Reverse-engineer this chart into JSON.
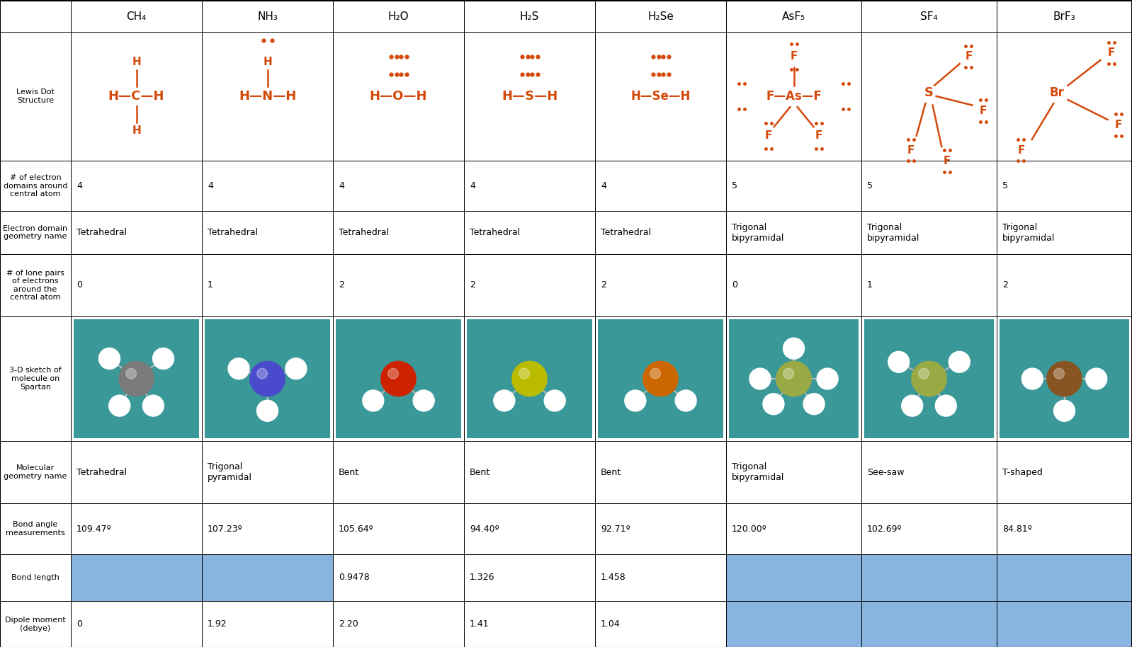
{
  "orange": "#d4490a",
  "blue_bg": "#8ab4e0",
  "teal_bg": "#3a9898",
  "white": "#ffffff",
  "black": "#000000",
  "header_texts": [
    "CH₄",
    "NH₃",
    "H₂O",
    "H₂S",
    "H₂Se",
    "AsF₅",
    "SF₄",
    "BrF₃"
  ],
  "row_labels": [
    "Lewis Dot\nStructure",
    "# of electron\ndomains around\ncentral atom",
    "Electron domain\ngeometry name",
    "# of lone pairs\nof electrons\naround the\ncentral atom",
    "3-D sketch of\nmolecule on\nSpartan",
    "Molecular\ngeometry name",
    "Bond angle\nmeasurements",
    "Bond length",
    "Dipole moment\n(debye)"
  ],
  "electron_domains": [
    "4",
    "4",
    "4",
    "4",
    "4",
    "5",
    "5",
    "5"
  ],
  "electron_geom": [
    "Tetrahedral",
    "Tetrahedral",
    "Tetrahedral",
    "Tetrahedral",
    "Tetrahedral",
    "Trigonal\nbipyramidal",
    "Trigonal\nbipyramidal",
    "Trigonal\nbipyramidal"
  ],
  "lone_pairs": [
    "0",
    "1",
    "2",
    "2",
    "2",
    "0",
    "1",
    "2"
  ],
  "mol_geom": [
    "Tetrahedral",
    "Trigonal\npyramidal",
    "Bent",
    "Bent",
    "Bent",
    "Trigonal\nbipyramidal",
    "See-saw",
    "T-shaped"
  ],
  "bond_angles": [
    "109.47º",
    "107.23º",
    "105.64º",
    "94.40º",
    "92.71º",
    "120.00º",
    "102.69º",
    "84.81º"
  ],
  "bond_lengths": [
    "",
    "",
    "0.9478",
    "1.326",
    "1.458",
    "",
    "",
    ""
  ],
  "bond_length_blue": [
    true,
    true,
    false,
    false,
    false,
    true,
    true,
    true
  ],
  "dipole_moments": [
    "0",
    "1.92",
    "2.20",
    "1.41",
    "1.04",
    "",
    "",
    ""
  ],
  "dipole_blue": [
    false,
    false,
    false,
    false,
    false,
    true,
    true,
    true
  ],
  "mol_central_colors": [
    "#7a7a7a",
    "#4a4acc",
    "#cc2200",
    "#bbbb00",
    "#cc6600",
    "#99aa44",
    "#99aa44",
    "#885522"
  ],
  "mol_outer_colors": [
    "#cccccc",
    "#cccccc",
    "#cccccc",
    "#cccccc",
    "#cccccc",
    "#99aa44",
    "#99aa44",
    "#99aa44"
  ]
}
